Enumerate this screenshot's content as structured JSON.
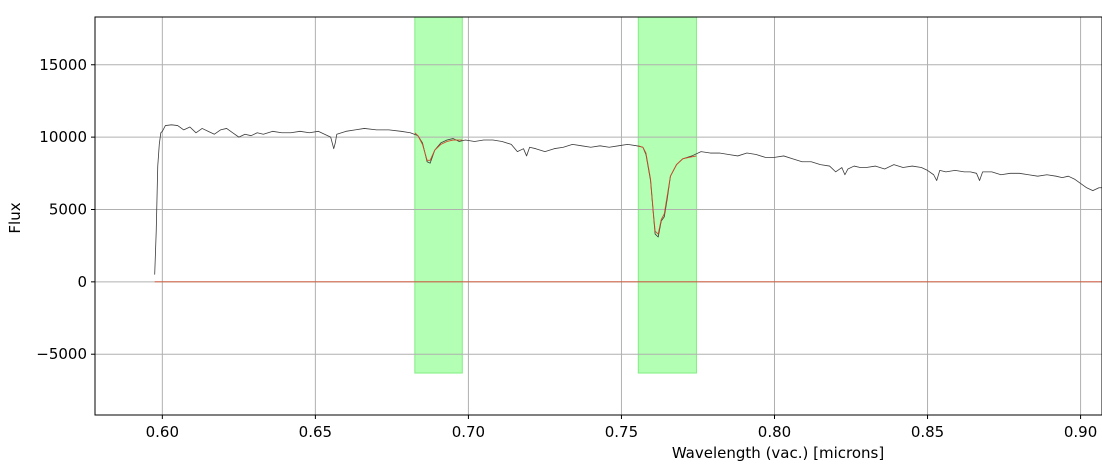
{
  "chart_data": {
    "type": "line",
    "title": "",
    "xlabel": "Wavelength (vac.) [microns]",
    "ylabel": "Flux",
    "xlim": [
      0.578,
      0.907
    ],
    "ylim": [
      -9200,
      18300
    ],
    "grid": true,
    "x_ticks": [
      {
        "value": 0.6,
        "label": "0.60"
      },
      {
        "value": 0.65,
        "label": "0.65"
      },
      {
        "value": 0.7,
        "label": "0.70"
      },
      {
        "value": 0.75,
        "label": "0.75"
      },
      {
        "value": 0.8,
        "label": "0.80"
      },
      {
        "value": 0.85,
        "label": "0.85"
      },
      {
        "value": 0.9,
        "label": "0.90"
      }
    ],
    "y_ticks": [
      {
        "value": -5000,
        "label": "−5000"
      },
      {
        "value": 0,
        "label": "0"
      },
      {
        "value": 5000,
        "label": "5000"
      },
      {
        "value": 10000,
        "label": "10000"
      },
      {
        "value": 15000,
        "label": "15000"
      }
    ],
    "regions": [
      {
        "x_start": 0.6825,
        "x_end": 0.698,
        "y_bottom": -6300,
        "y_top": 18300,
        "color": "#b3ffb3",
        "edge": "#80ef80"
      },
      {
        "x_start": 0.7555,
        "x_end": 0.7745,
        "y_bottom": -6300,
        "y_top": 18300,
        "color": "#b3ffb3",
        "edge": "#80ef80"
      }
    ],
    "series": [
      {
        "color": "#3c3c3c",
        "x": [
          0.5975,
          0.598,
          0.5985,
          0.599,
          0.5995,
          0.6,
          0.601,
          0.603,
          0.605,
          0.607,
          0.609,
          0.611,
          0.613,
          0.615,
          0.617,
          0.619,
          0.621,
          0.623,
          0.625,
          0.627,
          0.629,
          0.631,
          0.633,
          0.636,
          0.639,
          0.642,
          0.645,
          0.648,
          0.651,
          0.653,
          0.655,
          0.6555,
          0.656,
          0.6565,
          0.657,
          0.66,
          0.663,
          0.666,
          0.67,
          0.674,
          0.678,
          0.681,
          0.6835,
          0.685,
          0.6865,
          0.6875,
          0.689,
          0.691,
          0.693,
          0.695,
          0.697,
          0.699,
          0.702,
          0.705,
          0.708,
          0.711,
          0.714,
          0.716,
          0.718,
          0.719,
          0.72,
          0.722,
          0.725,
          0.728,
          0.731,
          0.734,
          0.737,
          0.74,
          0.743,
          0.746,
          0.749,
          0.752,
          0.755,
          0.757,
          0.758,
          0.7595,
          0.7605,
          0.761,
          0.762,
          0.763,
          0.764,
          0.765,
          0.766,
          0.768,
          0.77,
          0.773,
          0.776,
          0.779,
          0.782,
          0.785,
          0.788,
          0.791,
          0.794,
          0.797,
          0.8,
          0.803,
          0.806,
          0.809,
          0.812,
          0.815,
          0.818,
          0.82,
          0.822,
          0.823,
          0.824,
          0.826,
          0.828,
          0.83,
          0.833,
          0.836,
          0.839,
          0.842,
          0.845,
          0.848,
          0.85,
          0.852,
          0.853,
          0.854,
          0.856,
          0.859,
          0.862,
          0.864,
          0.866,
          0.867,
          0.868,
          0.871,
          0.874,
          0.877,
          0.88,
          0.883,
          0.886,
          0.889,
          0.892,
          0.894,
          0.896,
          0.898,
          0.9,
          0.902,
          0.904,
          0.906,
          0.907
        ],
        "y": [
          500,
          3500,
          8000,
          9500,
          10300,
          10400,
          10800,
          10850,
          10800,
          10500,
          10700,
          10300,
          10600,
          10400,
          10200,
          10500,
          10600,
          10300,
          10000,
          10200,
          10100,
          10300,
          10200,
          10400,
          10300,
          10300,
          10400,
          10300,
          10400,
          10200,
          10000,
          9600,
          9200,
          9600,
          10200,
          10400,
          10500,
          10600,
          10500,
          10500,
          10400,
          10300,
          10100,
          9600,
          8300,
          8200,
          9100,
          9600,
          9800,
          9900,
          9700,
          9800,
          9700,
          9800,
          9800,
          9700,
          9500,
          9000,
          9200,
          8700,
          9300,
          9200,
          9000,
          9200,
          9300,
          9500,
          9400,
          9300,
          9400,
          9300,
          9400,
          9500,
          9400,
          9300,
          8800,
          7000,
          4500,
          3300,
          3100,
          4200,
          4500,
          5800,
          7300,
          8100,
          8500,
          8700,
          9000,
          8900,
          8900,
          8800,
          8700,
          8900,
          8800,
          8600,
          8600,
          8700,
          8500,
          8300,
          8300,
          8100,
          8000,
          7600,
          7900,
          7400,
          7800,
          8000,
          7900,
          7900,
          8000,
          7800,
          8100,
          7900,
          8000,
          7900,
          7700,
          7400,
          7000,
          7700,
          7600,
          7700,
          7600,
          7600,
          7500,
          7000,
          7600,
          7600,
          7400,
          7500,
          7500,
          7400,
          7300,
          7400,
          7300,
          7200,
          7300,
          7100,
          6800,
          6500,
          6300,
          6500,
          6500
        ]
      },
      {
        "color": "#d04a2a",
        "x": [
          0.6825,
          0.6835,
          0.685,
          0.6865,
          0.6875,
          0.689,
          0.691,
          0.693,
          0.695,
          0.697,
          0.698
        ],
        "y": [
          10300,
          10100,
          9500,
          8400,
          8400,
          9100,
          9500,
          9700,
          9800,
          9800,
          9800
        ]
      },
      {
        "color": "#d04a2a",
        "x": [
          0.7555,
          0.757,
          0.758,
          0.7595,
          0.7605,
          0.761,
          0.762,
          0.763,
          0.764,
          0.765,
          0.766,
          0.768,
          0.77,
          0.772,
          0.7745
        ],
        "y": [
          9400,
          9300,
          8900,
          7100,
          4600,
          3500,
          3300,
          4300,
          4700,
          6000,
          7300,
          8100,
          8500,
          8600,
          8700
        ]
      },
      {
        "color": "#d04a2a",
        "x": [
          0.5975,
          0.6825,
          0.6825,
          0.698,
          0.698,
          0.7555,
          0.7555,
          0.7745,
          0.7745,
          0.907
        ],
        "y": [
          0,
          0,
          0,
          0,
          0,
          0,
          0,
          0,
          0,
          0
        ]
      }
    ]
  }
}
